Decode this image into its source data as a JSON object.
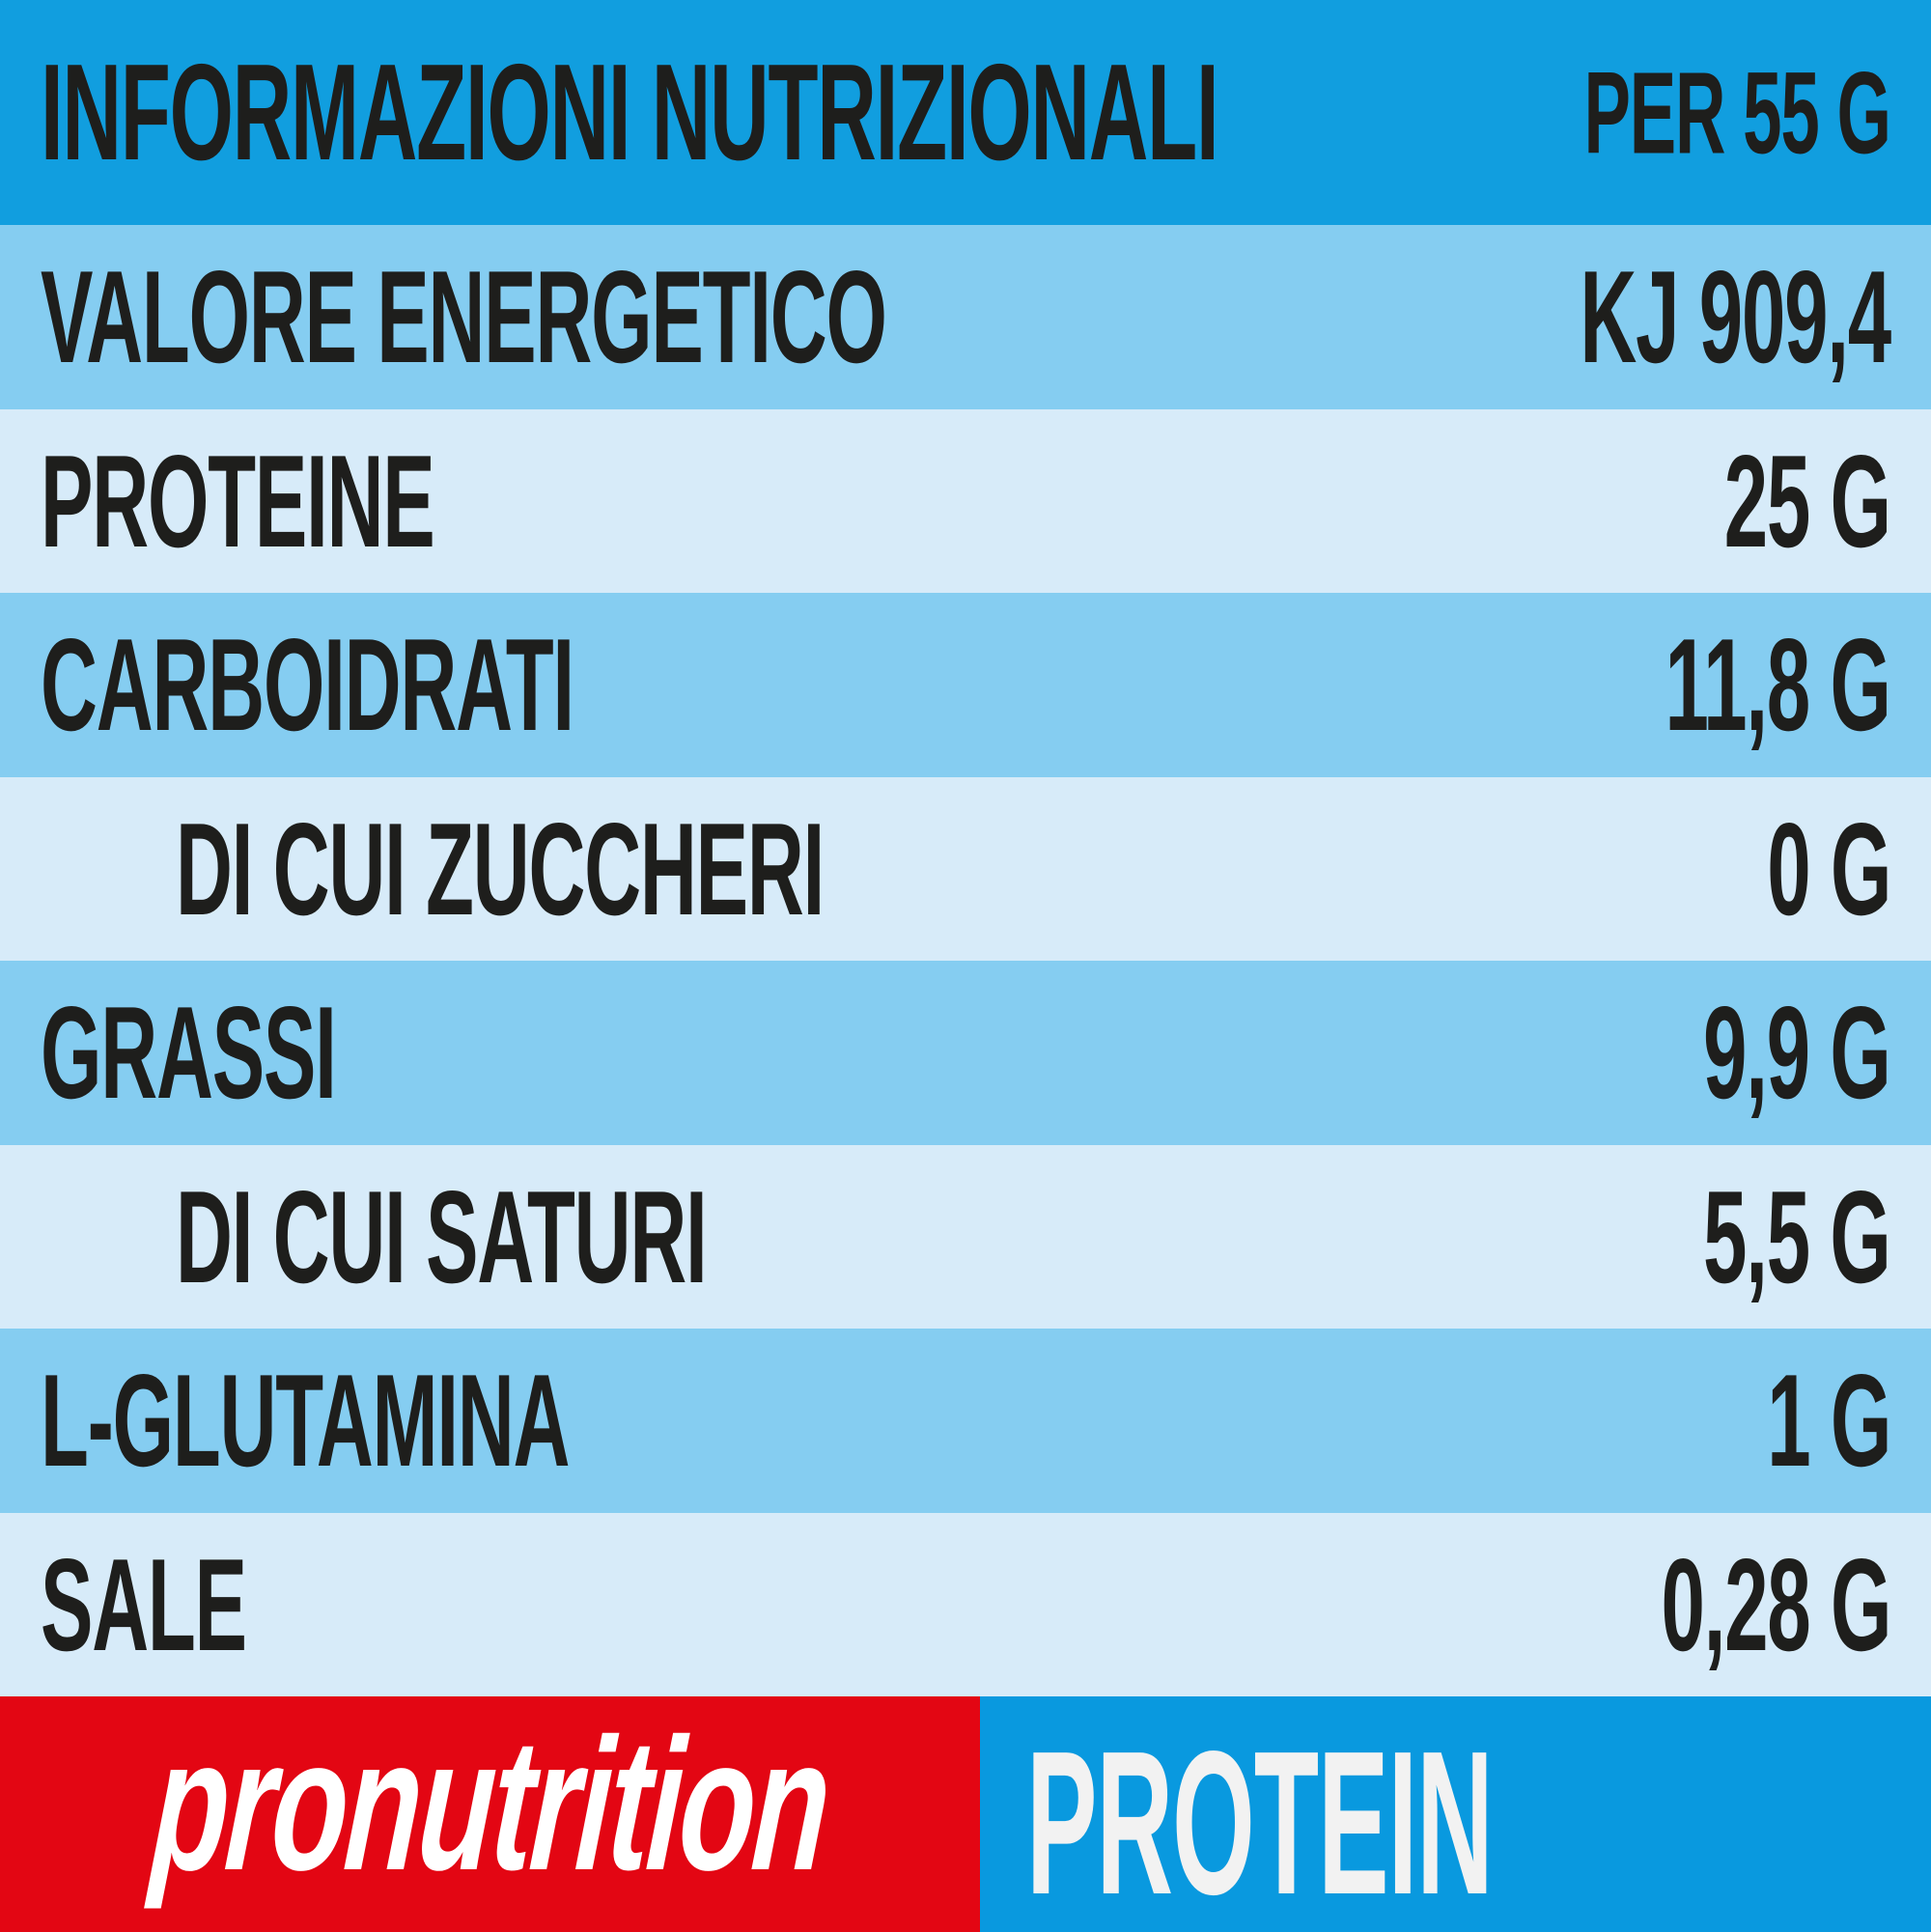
{
  "colors": {
    "header_blue": "#119EDF",
    "row_medium_blue": "#85CDF1",
    "row_light_blue": "#D7EBF9",
    "text_dark": "#1E1E1C",
    "footer_red": "#E30613",
    "footer_blue": "#0999DF",
    "brand_text": "#FFFFFF",
    "product_text": "#F2F2F2"
  },
  "table": {
    "header": {
      "label": "INFORMAZIONI NUTRIZIONALI",
      "value": "PER 55 G"
    },
    "rows": [
      {
        "label": "VALORE ENERGETICO",
        "value": "KJ 909,4",
        "tone": "medium",
        "indent": false
      },
      {
        "label": "PROTEINE",
        "value": "25 G",
        "tone": "light",
        "indent": false
      },
      {
        "label": "CARBOIDRATI",
        "value": "11,8 G",
        "tone": "medium",
        "indent": false
      },
      {
        "label": "DI CUI ZUCCHERI",
        "value": "0 G",
        "tone": "light",
        "indent": true
      },
      {
        "label": "GRASSI",
        "value": "9,9 G",
        "tone": "medium",
        "indent": false
      },
      {
        "label": "DI CUI SATURI",
        "value": "5,5 G",
        "tone": "light",
        "indent": true
      },
      {
        "label": "L-GLUTAMINA",
        "value": "1 G",
        "tone": "medium",
        "indent": false
      },
      {
        "label": "SALE",
        "value": "0,28 G",
        "tone": "light",
        "indent": false
      }
    ]
  },
  "footer": {
    "brand": "pronutrition",
    "product": "PROTEIN"
  }
}
